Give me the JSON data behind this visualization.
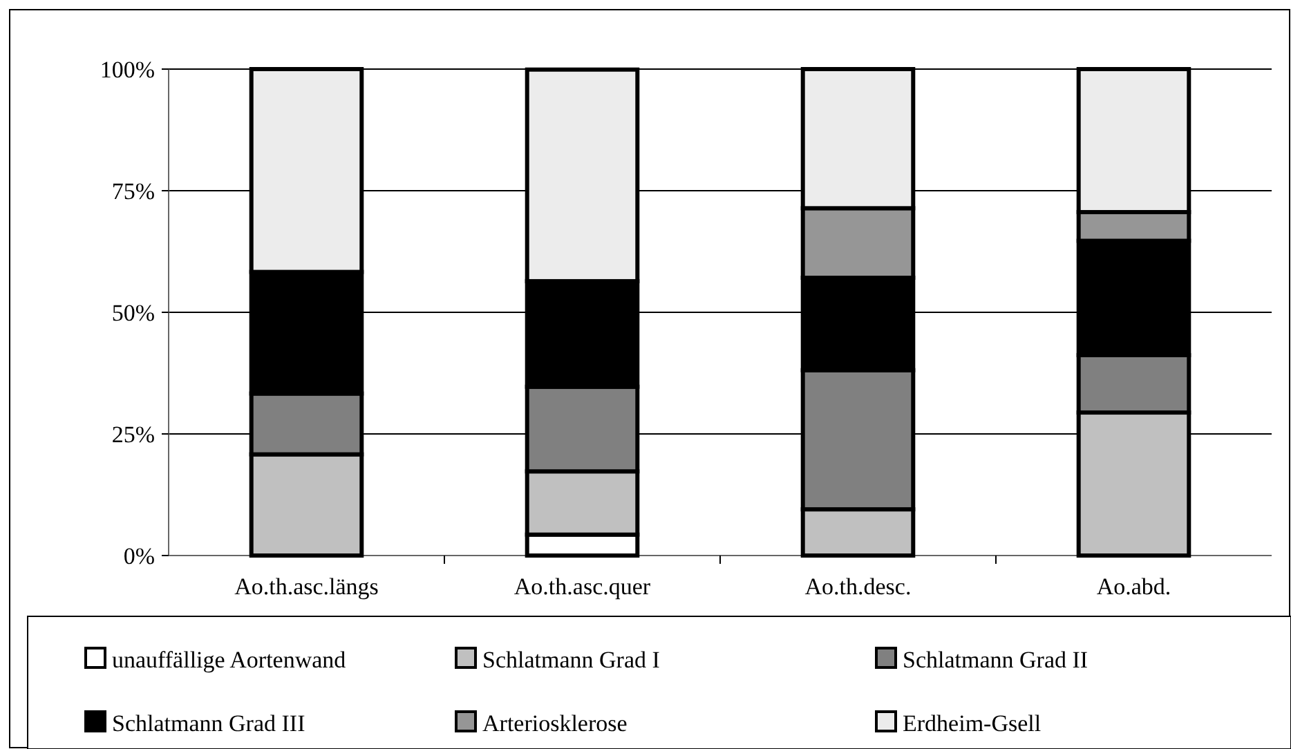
{
  "chart_data": {
    "type": "bar",
    "stacked": true,
    "categories": [
      "Ao.th.asc.längs",
      "Ao.th.asc.quer",
      "Ao.th.desc.",
      "Ao.abd."
    ],
    "series": [
      {
        "name": "unauffällige Aortenwand",
        "color": "#ffffff",
        "values": [
          0,
          4.3,
          0,
          0
        ]
      },
      {
        "name": "Schlatmann Grad I",
        "color": "#c0c0c0",
        "values": [
          20.8,
          13.0,
          9.5,
          29.4
        ]
      },
      {
        "name": "Schlatmann Grad II",
        "color": "#808080",
        "values": [
          12.5,
          17.4,
          28.6,
          11.8
        ]
      },
      {
        "name": "Schlatmann Grad III",
        "color": "#000000",
        "values": [
          25.0,
          21.7,
          19.0,
          23.5
        ]
      },
      {
        "name": "Arteriosklerose",
        "color": "#969696",
        "values": [
          0,
          0,
          14.3,
          5.9
        ]
      },
      {
        "name": "Erdheim-Gsell",
        "color": "#ececec",
        "values": [
          41.7,
          43.5,
          28.6,
          29.4
        ]
      }
    ],
    "ylim": [
      0,
      100
    ],
    "yticks": [
      {
        "value": 0,
        "label": "0%"
      },
      {
        "value": 25,
        "label": "25%"
      },
      {
        "value": 50,
        "label": "50%"
      },
      {
        "value": 75,
        "label": "75%"
      },
      {
        "value": 100,
        "label": "100%"
      }
    ],
    "grid": "y",
    "legend": "bottom"
  }
}
